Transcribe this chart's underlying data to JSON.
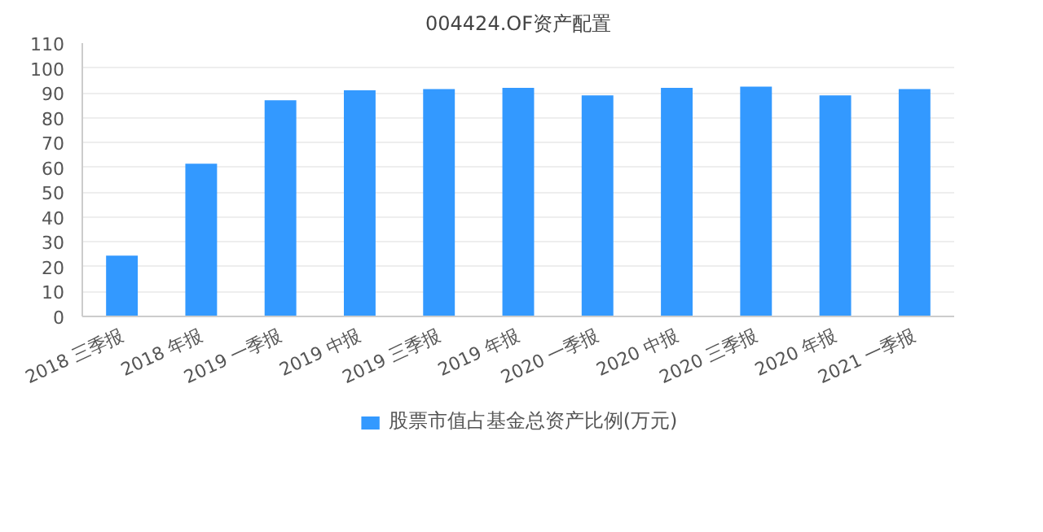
{
  "chart_data": {
    "type": "bar",
    "title": "004424.OF资产配置",
    "categories": [
      "2018 三季报",
      "2018 年报",
      "2019 一季报",
      "2019 中报",
      "2019 三季报",
      "2019 年报",
      "2020 一季报",
      "2020 中报",
      "2020 三季报",
      "2020 年报",
      "2021 一季报"
    ],
    "series": [
      {
        "name": "股票市值占基金总资产比例(万元)",
        "color": "#3399ff",
        "values": [
          24.5,
          61.5,
          87,
          91,
          91.5,
          92,
          89,
          92,
          92.5,
          89,
          91.5
        ]
      }
    ],
    "ylim": [
      0,
      110
    ],
    "yticks": [
      0,
      10,
      20,
      30,
      40,
      50,
      60,
      70,
      80,
      90,
      100,
      110
    ],
    "grid": "y",
    "legend": "bottom"
  }
}
